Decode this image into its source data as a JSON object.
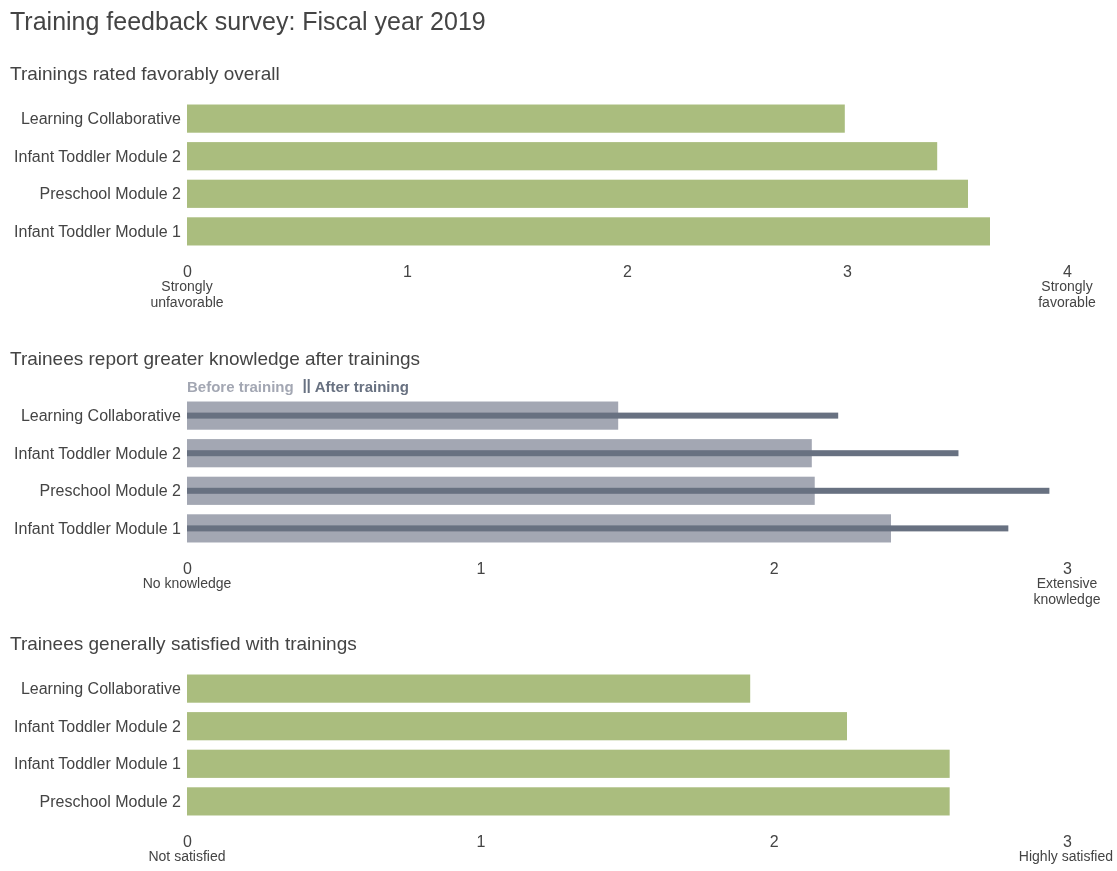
{
  "chart_data": [
    {
      "type": "bar",
      "orientation": "horizontal",
      "title": "Training feedback survey: Fiscal year 2019",
      "subtitle": "Trainings rated favorably overall",
      "categories": [
        "Learning Collaborative",
        "Infant Toddler Module 2",
        "Preschool Module 2",
        "Infant Toddler Module 1"
      ],
      "values": [
        2.99,
        3.41,
        3.55,
        3.65
      ],
      "color": "#aabd7e",
      "xlim": [
        0,
        4
      ],
      "xticks": [
        0,
        1,
        2,
        3,
        4
      ],
      "annotations": [
        "Strongly unfavorable",
        "Strongly favorable"
      ]
    },
    {
      "type": "bar",
      "orientation": "horizontal",
      "title": "Trainees report greater knowledge after trainings",
      "categories": [
        "Learning Collaborative",
        "Infant Toddler Module 2",
        "Preschool Module 2",
        "Infant Toddler Module 1"
      ],
      "legend": "top left",
      "series": [
        {
          "name": "Before training",
          "color": "#a3a7b3",
          "values": [
            1.47,
            2.13,
            2.14,
            2.4
          ]
        },
        {
          "name": "After training",
          "color": "#687181",
          "values": [
            2.22,
            2.63,
            2.94,
            2.8
          ]
        }
      ],
      "xlim": [
        0,
        3
      ],
      "xticks": [
        0,
        1,
        2,
        3
      ],
      "annotations": [
        "No knowledge",
        "Extensive knowledge"
      ]
    },
    {
      "type": "bar",
      "orientation": "horizontal",
      "title": "Trainees generally satisfied with trainings",
      "categories": [
        "Learning Collaborative",
        "Infant Toddler Module 2",
        "Infant Toddler Module 1",
        "Preschool Module 2"
      ],
      "values": [
        1.92,
        2.25,
        2.6,
        2.6
      ],
      "color": "#aabd7e",
      "xlim": [
        0,
        3
      ],
      "xticks": [
        0,
        1,
        2,
        3
      ],
      "annotations": [
        "Not satisfied",
        "Highly satisfied"
      ]
    }
  ]
}
